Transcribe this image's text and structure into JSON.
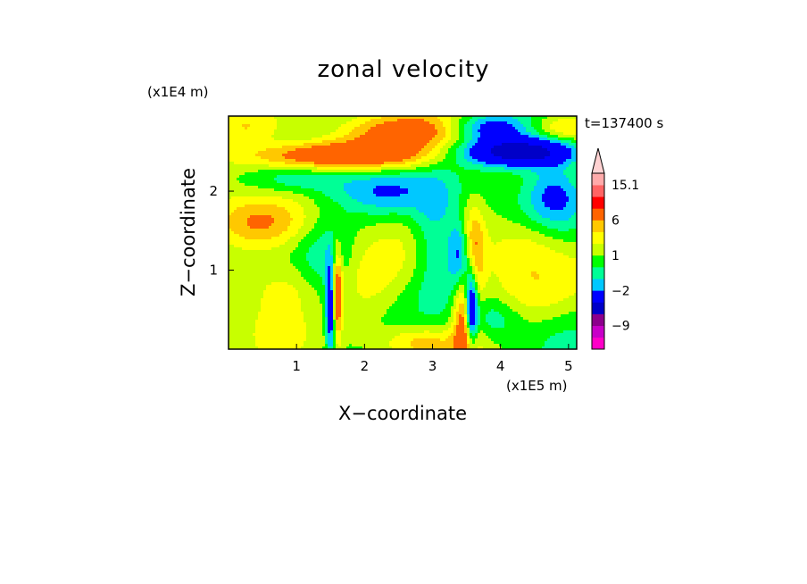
{
  "chart_data": {
    "type": "heatmap",
    "title": "zonal velocity",
    "xlabel": "X−coordinate",
    "ylabel": "Z−coordinate",
    "x_unit": "(x1E5 m)",
    "y_unit": "(x1E4 m)",
    "time_label": "t=137400 s",
    "xlim": [
      0,
      5.12
    ],
    "ylim": [
      0,
      2.95
    ],
    "x_ticks": [
      {
        "value": 1,
        "label": "1"
      },
      {
        "value": 2,
        "label": "2"
      },
      {
        "value": 3,
        "label": "3"
      },
      {
        "value": 4,
        "label": "4"
      },
      {
        "value": 5,
        "label": "5"
      }
    ],
    "y_ticks": [
      {
        "value": 1,
        "label": "1"
      },
      {
        "value": 2,
        "label": "2"
      }
    ],
    "colorbar": {
      "levels": [
        -15,
        -12,
        -9,
        -6,
        -3,
        -2,
        -1,
        0,
        1,
        2,
        3,
        6,
        9,
        12,
        15.1
      ],
      "colors": [
        "#ff00c8",
        "#c800c8",
        "#8c008c",
        "#0000c8",
        "#0000ff",
        "#00c8ff",
        "#00ff96",
        "#00ff00",
        "#c8ff00",
        "#ffff00",
        "#ffc800",
        "#ff6400",
        "#ff0000",
        "#ff6464",
        "#ffaaaa",
        "#ffd2d2"
      ],
      "tick_labels": [
        {
          "value": 15.1,
          "label": "15.1"
        },
        {
          "value": 6,
          "label": "6"
        },
        {
          "value": 1,
          "label": "1"
        },
        {
          "value": -2,
          "label": "−2"
        },
        {
          "value": -9,
          "label": "−9"
        }
      ]
    },
    "features": [
      {
        "x": 1.6,
        "z": 2.45,
        "sx": 0.9,
        "sz": 0.13,
        "amp": 6
      },
      {
        "x": 2.6,
        "z": 2.75,
        "sx": 0.8,
        "sz": 0.15,
        "amp": 3
      },
      {
        "x": 4.3,
        "z": 2.5,
        "sx": 0.6,
        "sz": 0.13,
        "amp": -8
      },
      {
        "x": 3.8,
        "z": 2.8,
        "sx": 0.4,
        "sz": 0.12,
        "amp": -4
      },
      {
        "x": 3.5,
        "z": 1.2,
        "sx": 0.15,
        "sz": 0.3,
        "amp": -7
      },
      {
        "x": 3.58,
        "z": 1.2,
        "sx": 0.12,
        "sz": 0.35,
        "amp": 8
      },
      {
        "x": 3.5,
        "z": 0.35,
        "sx": 0.12,
        "sz": 0.35,
        "amp": 6
      },
      {
        "x": 3.57,
        "z": 0.5,
        "sx": 0.07,
        "sz": 0.35,
        "amp": -9
      },
      {
        "x": 3.05,
        "z": 1.4,
        "sx": 0.25,
        "sz": 0.5,
        "amp": -3
      },
      {
        "x": 1.5,
        "z": 0.5,
        "sx": 0.05,
        "sz": 0.4,
        "amp": -5
      },
      {
        "x": 1.6,
        "z": 0.7,
        "sx": 0.05,
        "sz": 0.4,
        "amp": 5
      },
      {
        "x": 1.45,
        "z": 1.0,
        "sx": 0.3,
        "sz": 0.5,
        "amp": -2
      },
      {
        "x": 1.0,
        "z": 0.8,
        "sx": 0.5,
        "sz": 0.25,
        "amp": 2
      },
      {
        "x": 0.4,
        "z": 1.6,
        "sx": 0.5,
        "sz": 0.2,
        "amp": 2
      },
      {
        "x": 2.3,
        "z": 2.0,
        "sx": 0.5,
        "sz": 0.2,
        "amp": -2.5
      },
      {
        "x": 4.8,
        "z": 2.0,
        "sx": 0.3,
        "sz": 0.3,
        "amp": -3
      },
      {
        "x": 4.4,
        "z": 1.3,
        "sx": 0.4,
        "sz": 0.3,
        "amp": 2
      },
      {
        "x": 4.4,
        "z": 0.6,
        "sx": 0.5,
        "sz": 0.3,
        "amp": 1.5
      },
      {
        "x": 2.0,
        "z": 0.9,
        "sx": 0.4,
        "sz": 0.4,
        "amp": 2
      },
      {
        "x": 3.9,
        "z": 0.4,
        "sx": 0.3,
        "sz": 0.2,
        "amp": -2
      },
      {
        "x": 2.8,
        "z": 0.1,
        "sx": 0.4,
        "sz": 0.12,
        "amp": 2
      },
      {
        "x": 0.3,
        "z": 2.8,
        "sx": 0.4,
        "sz": 0.12,
        "amp": 1.5
      },
      {
        "x": 1.0,
        "z": 2.15,
        "sx": 0.5,
        "sz": 0.12,
        "amp": -1.5
      },
      {
        "x": 4.9,
        "z": 2.8,
        "sx": 0.3,
        "sz": 0.12,
        "amp": 2
      }
    ]
  }
}
